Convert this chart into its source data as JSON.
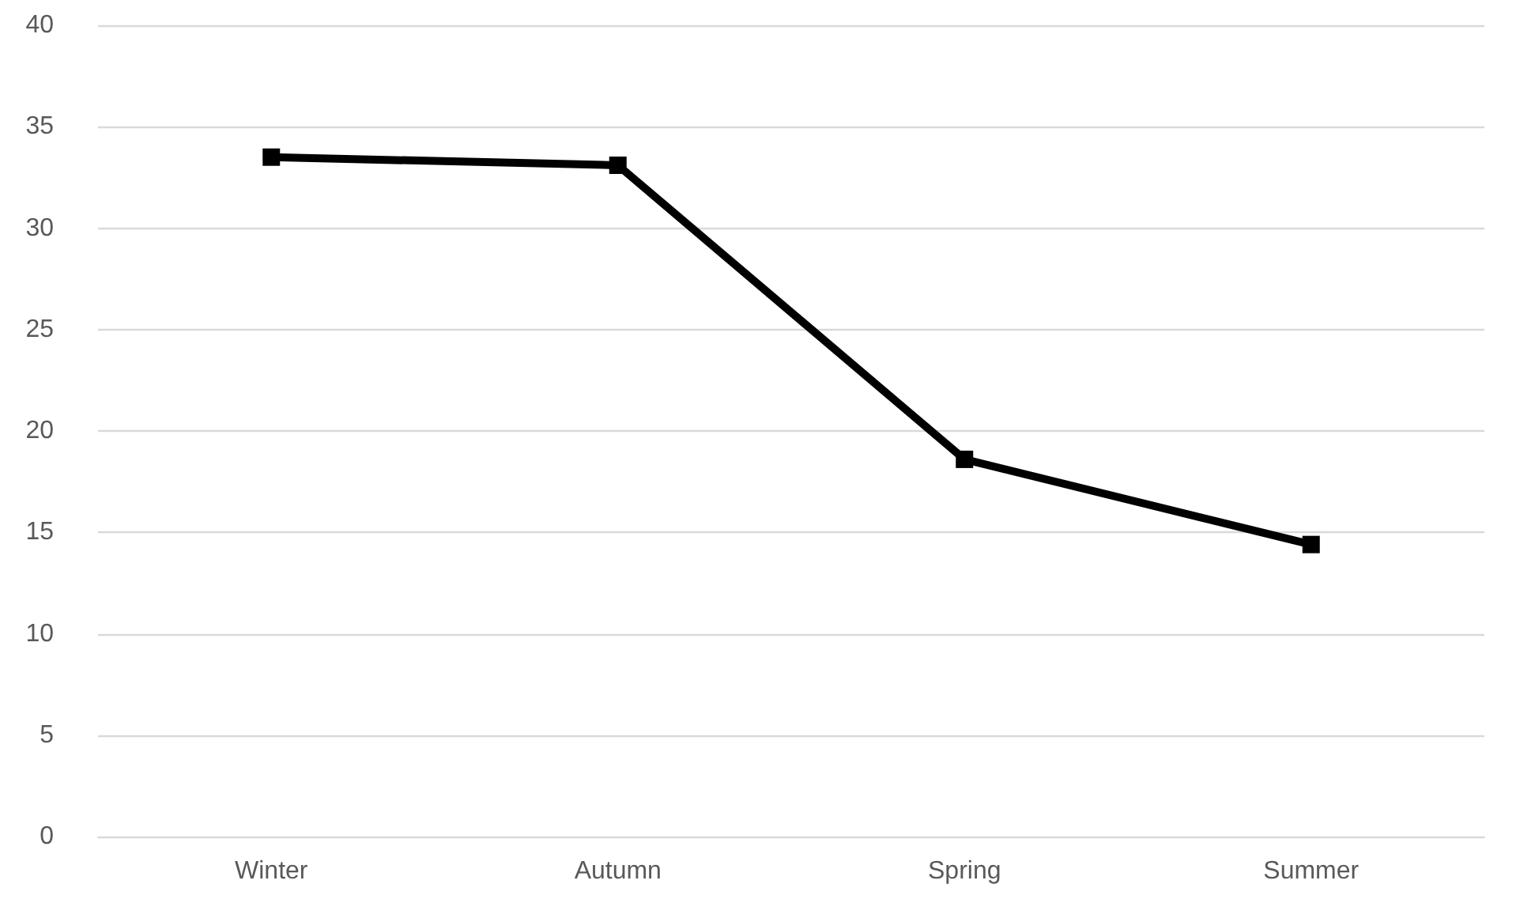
{
  "chart_data": {
    "type": "line",
    "categories": [
      "Winter",
      "Autumn",
      "Spring",
      "Summer"
    ],
    "series": [
      {
        "color": "#000000",
        "values": [
          33.5,
          33.1,
          18.6,
          14.4
        ]
      }
    ],
    "ylim": [
      0,
      40
    ],
    "yticks": [
      0,
      5,
      10,
      15,
      20,
      25,
      30,
      35,
      40
    ],
    "grid": "y",
    "marker": "square",
    "line_style": "solid"
  }
}
